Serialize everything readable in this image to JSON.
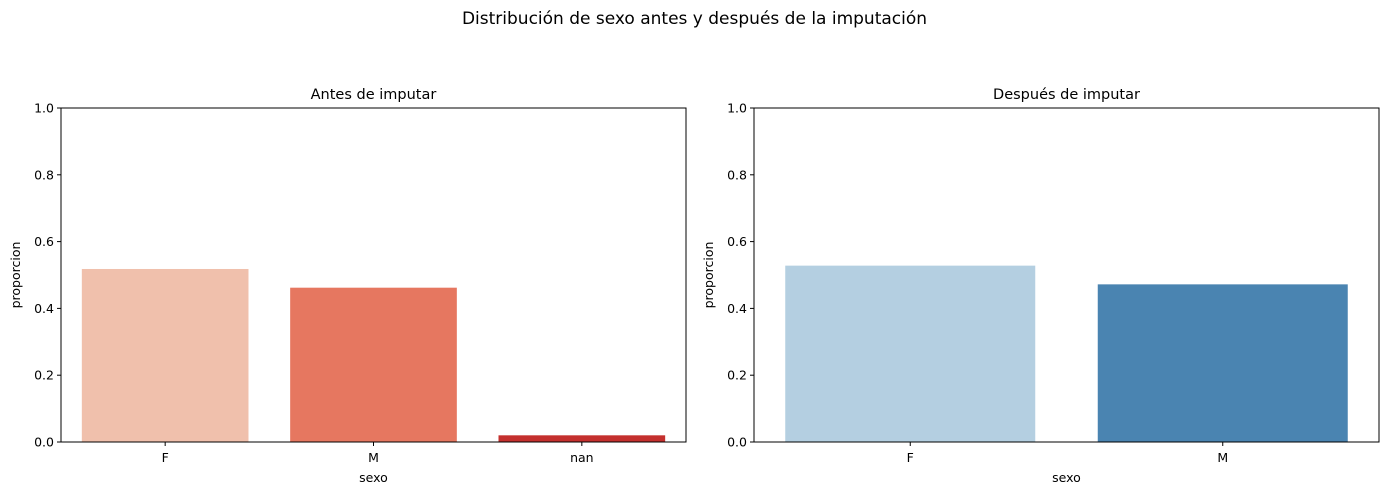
{
  "figure": {
    "suptitle": "Distribución de sexo antes y después de la imputación"
  },
  "chart_data": [
    {
      "type": "bar",
      "title": "Antes de imputar",
      "xlabel": "sexo",
      "ylabel": "proporcion",
      "categories": [
        "F",
        "M",
        "nan"
      ],
      "values": [
        0.518,
        0.462,
        0.02
      ],
      "colors": [
        "#f0c0ac",
        "#e67760",
        "#c4302e"
      ],
      "ylim": [
        0,
        1.0
      ],
      "yticks": [
        "0.0",
        "0.2",
        "0.4",
        "0.6",
        "0.8",
        "1.0"
      ],
      "grid": false
    },
    {
      "type": "bar",
      "title": "Después de imputar",
      "xlabel": "sexo",
      "ylabel": "proporcion",
      "categories": [
        "F",
        "M"
      ],
      "values": [
        0.528,
        0.472
      ],
      "colors": [
        "#b4cfe1",
        "#4a84b1"
      ],
      "ylim": [
        0,
        1.0
      ],
      "yticks": [
        "0.0",
        "0.2",
        "0.4",
        "0.6",
        "0.8",
        "1.0"
      ],
      "grid": false
    }
  ]
}
